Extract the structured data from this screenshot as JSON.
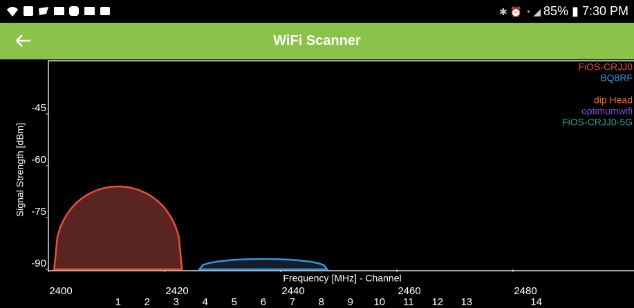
{
  "status_bar": {
    "battery": "85%",
    "time": "7:30 PM"
  },
  "app_bar": {
    "title": "WiFi Scanner"
  },
  "chart_data": {
    "type": "wifi",
    "x_label": "Frequency [MHz] - Channel",
    "y_label": "Signal Strength [dBm]",
    "xlim": [
      2400,
      2500
    ],
    "ylim": [
      -90,
      -30
    ],
    "xticks": [
      2400,
      2420,
      2440,
      2460,
      2480
    ],
    "x2ticks": [
      {
        "value": 2412,
        "label": "1"
      },
      {
        "value": 2417,
        "label": "2"
      },
      {
        "value": 2422,
        "label": "3"
      },
      {
        "value": 2427,
        "label": "4"
      },
      {
        "value": 2432,
        "label": "5"
      },
      {
        "value": 2437,
        "label": "6"
      },
      {
        "value": 2442,
        "label": "7"
      },
      {
        "value": 2447,
        "label": "8"
      },
      {
        "value": 2452,
        "label": "9"
      },
      {
        "value": 2457,
        "label": "10"
      },
      {
        "value": 2462,
        "label": "11"
      },
      {
        "value": 2467,
        "label": "12"
      },
      {
        "value": 2472,
        "label": "13"
      },
      {
        "value": 2484,
        "label": "14"
      }
    ],
    "yticks": [
      -45,
      -60,
      -75,
      -90
    ],
    "series": [
      {
        "name": "FiOS-CRJJ0",
        "color": "#e8503a",
        "fill": "#5a2520",
        "x": 2412,
        "value": -66
      },
      {
        "name": "BQ8RF",
        "color": "#3a92dc",
        "fill": "#161d2a",
        "x": 2437,
        "value": -87
      },
      {
        "name": "dip Head",
        "color": "#f06a2a",
        "fill": null,
        "x": null,
        "value": null
      },
      {
        "name": "optimumwifi",
        "color": "#7e4fd0",
        "fill": null,
        "x": null,
        "value": null
      },
      {
        "name": "FiOS-CRJJ0-5G",
        "color": "#1aa58a",
        "fill": null,
        "x": null,
        "value": null
      }
    ]
  }
}
